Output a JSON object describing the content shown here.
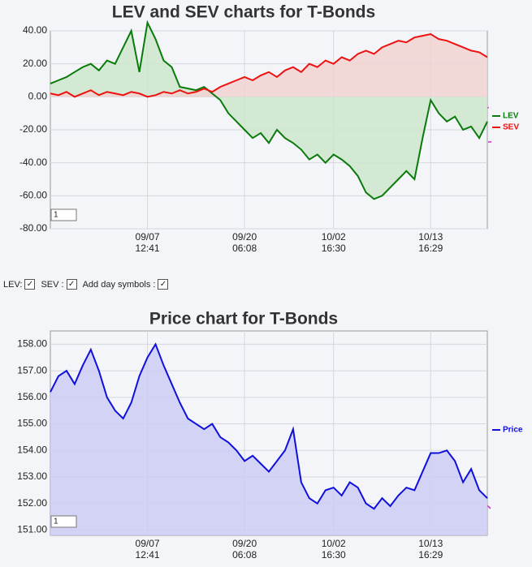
{
  "chart_data": [
    {
      "type": "line",
      "title": "LEV and SEV charts for T-Bonds",
      "series": [
        {
          "name": "LEV",
          "color": "#0a7a0a",
          "fill": "#cde6cd",
          "values": [
            8,
            10,
            12,
            15,
            18,
            20,
            16,
            22,
            20,
            30,
            40,
            15,
            45,
            35,
            22,
            18,
            6,
            5,
            4,
            6,
            2,
            -2,
            -10,
            -15,
            -20,
            -25,
            -22,
            -28,
            -20,
            -25,
            -28,
            -32,
            -38,
            -35,
            -40,
            -35,
            -38,
            -42,
            -48,
            -58,
            -62,
            -60,
            -55,
            -50,
            -45,
            -50,
            -25,
            -2,
            -10,
            -15,
            -12,
            -20,
            -18,
            -25,
            -15
          ]
        },
        {
          "name": "SEV",
          "color": "#ee1111",
          "fill": "#f2d2d2",
          "values": [
            2,
            1,
            3,
            0,
            2,
            4,
            1,
            3,
            2,
            1,
            3,
            2,
            0,
            1,
            3,
            2,
            4,
            2,
            3,
            5,
            3,
            6,
            8,
            10,
            12,
            10,
            13,
            15,
            12,
            16,
            18,
            15,
            20,
            18,
            22,
            20,
            24,
            22,
            26,
            28,
            26,
            30,
            32,
            34,
            33,
            36,
            37,
            38,
            35,
            34,
            32,
            30,
            28,
            27,
            24
          ]
        }
      ],
      "xlim": [
        0,
        54
      ],
      "xticks": [
        {
          "value": 12,
          "label": "09/07\n12:41"
        },
        {
          "value": 24,
          "label": "09/20\n06:08"
        },
        {
          "value": 35,
          "label": "10/02\n16:30"
        },
        {
          "value": 47,
          "label": "10/13\n16:29"
        }
      ],
      "ylim": [
        -80,
        40
      ],
      "yticks": [
        {
          "value": -80,
          "label": "-80.00"
        },
        {
          "value": -60,
          "label": "-60.00"
        },
        {
          "value": -40,
          "label": "-40.00"
        },
        {
          "value": -20,
          "label": "-20.00"
        },
        {
          "value": 0,
          "label": "0.00"
        },
        {
          "value": 20,
          "label": "20.00"
        },
        {
          "value": 40,
          "label": "40.00"
        }
      ],
      "grid": true,
      "legend": "right",
      "zoom": "1"
    },
    {
      "type": "line",
      "title": "Price chart for T-Bonds",
      "series": [
        {
          "name": "Price",
          "color": "#1010dd",
          "fill": "#cdcdf5",
          "values": [
            156.2,
            156.8,
            157.0,
            156.5,
            157.2,
            157.8,
            157.0,
            156.0,
            155.5,
            155.2,
            155.8,
            156.8,
            157.5,
            158.0,
            157.2,
            156.5,
            155.8,
            155.2,
            155.0,
            154.8,
            155.0,
            154.5,
            154.3,
            154.0,
            153.6,
            153.8,
            153.5,
            153.2,
            153.6,
            154.0,
            154.8,
            152.8,
            152.2,
            152.0,
            152.5,
            152.6,
            152.3,
            152.8,
            152.6,
            152.0,
            151.8,
            152.2,
            151.9,
            152.3,
            152.6,
            152.5,
            153.2,
            153.9,
            153.9,
            154.0,
            153.6,
            152.8,
            153.3,
            152.5,
            152.2
          ]
        }
      ],
      "xlim": [
        0,
        54
      ],
      "xticks": [
        {
          "value": 12,
          "label": "09/07\n12:41"
        },
        {
          "value": 24,
          "label": "09/20\n06:08"
        },
        {
          "value": 35,
          "label": "10/02\n16:30"
        },
        {
          "value": 47,
          "label": "10/13\n16:29"
        }
      ],
      "ylim": [
        150.8,
        158.5
      ],
      "yticks": [
        {
          "value": 151,
          "label": "151.00"
        },
        {
          "value": 152,
          "label": "152.00"
        },
        {
          "value": 153,
          "label": "153.00"
        },
        {
          "value": 154,
          "label": "154.00"
        },
        {
          "value": 155,
          "label": "155.00"
        },
        {
          "value": 156,
          "label": "156.00"
        },
        {
          "value": 157,
          "label": "157.00"
        },
        {
          "value": 158,
          "label": "158.00"
        }
      ],
      "grid": true,
      "legend": "right",
      "zoom": "1"
    }
  ],
  "controls": {
    "lev": "LEV:",
    "sev": "SEV :",
    "day_symbols": "Add day symbols :"
  }
}
